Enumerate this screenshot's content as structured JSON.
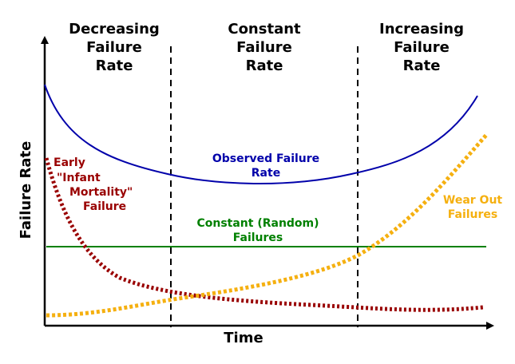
{
  "regions": [
    {
      "lines": [
        "Decreasing",
        "Failure",
        "Rate"
      ]
    },
    {
      "lines": [
        "Constant",
        "Failure",
        "Rate"
      ]
    },
    {
      "lines": [
        "Increasing",
        "Failure",
        "Rate"
      ]
    }
  ],
  "axes": {
    "xlabel": "Time",
    "ylabel": "Failure Rate"
  },
  "curves": {
    "observed": {
      "label_lines": [
        "Observed Failure",
        "Rate"
      ],
      "color": "#0000aa"
    },
    "constant": {
      "label_lines": [
        "Constant (Random)",
        "Failures"
      ],
      "color": "#008000"
    },
    "infant": {
      "label_lines": [
        "Early",
        "\"Infant",
        "Mortality\"",
        "Failure"
      ],
      "color": "#990000"
    },
    "wearout": {
      "label_lines": [
        "Wear Out",
        "Failures"
      ],
      "color": "#f5b010"
    }
  }
}
